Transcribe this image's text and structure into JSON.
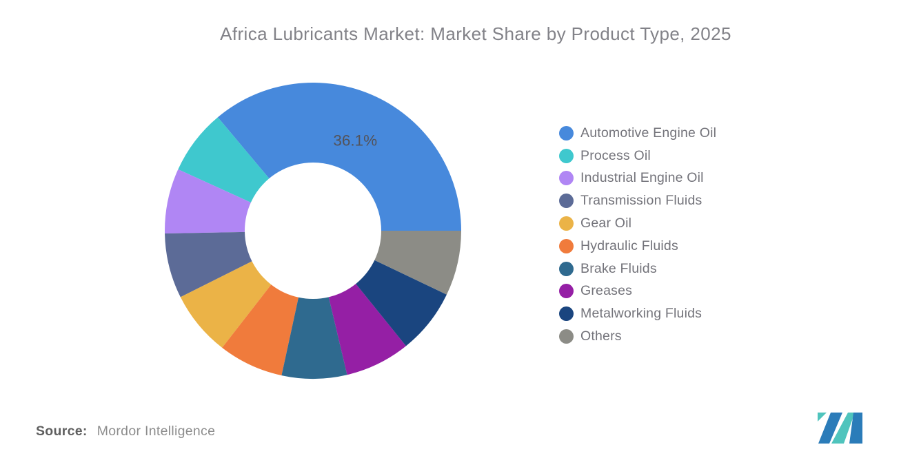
{
  "page": {
    "title": "Africa Lubricants Market: Market Share by Product Type, 2025"
  },
  "source": {
    "label": "Source:",
    "value": "Mordor Intelligence"
  },
  "logo": {
    "name": "mordor-intelligence-logo",
    "primary_color": "#2b7cb9",
    "accent_color": "#4fc4bd"
  },
  "chart_data": {
    "type": "pie",
    "subtype": "donut",
    "title": "Africa Lubricants Market: Market Share by Product Type, 2025",
    "units": "%",
    "start_angle_deg": 90,
    "direction": "counterclockwise",
    "inner_radius_ratio": 0.46,
    "outer_radius_px": 215,
    "inner_radius_px": 99,
    "legend_position": "right",
    "grid": false,
    "series": [
      {
        "label": "Automotive Engine Oil",
        "value": 36.1,
        "color": "#4789DC",
        "data_label": "36.1%"
      },
      {
        "label": "Process Oil",
        "value": 7.1,
        "color": "#3FC8CE"
      },
      {
        "label": "Industrial Engine Oil",
        "value": 7.1,
        "color": "#B086F4"
      },
      {
        "label": "Transmission Fluids",
        "value": 7.1,
        "color": "#5C6B97"
      },
      {
        "label": "Gear Oil",
        "value": 7.1,
        "color": "#EBB347"
      },
      {
        "label": "Hydraulic Fluids",
        "value": 7.1,
        "color": "#F07B3C"
      },
      {
        "label": "Brake Fluids",
        "value": 7.1,
        "color": "#2F6A8F"
      },
      {
        "label": "Greases",
        "value": 7.1,
        "color": "#951FA5"
      },
      {
        "label": "Metalworking Fluids",
        "value": 7.1,
        "color": "#1A457F"
      },
      {
        "label": "Others",
        "value": 7.1,
        "color": "#8C8C86"
      }
    ]
  }
}
